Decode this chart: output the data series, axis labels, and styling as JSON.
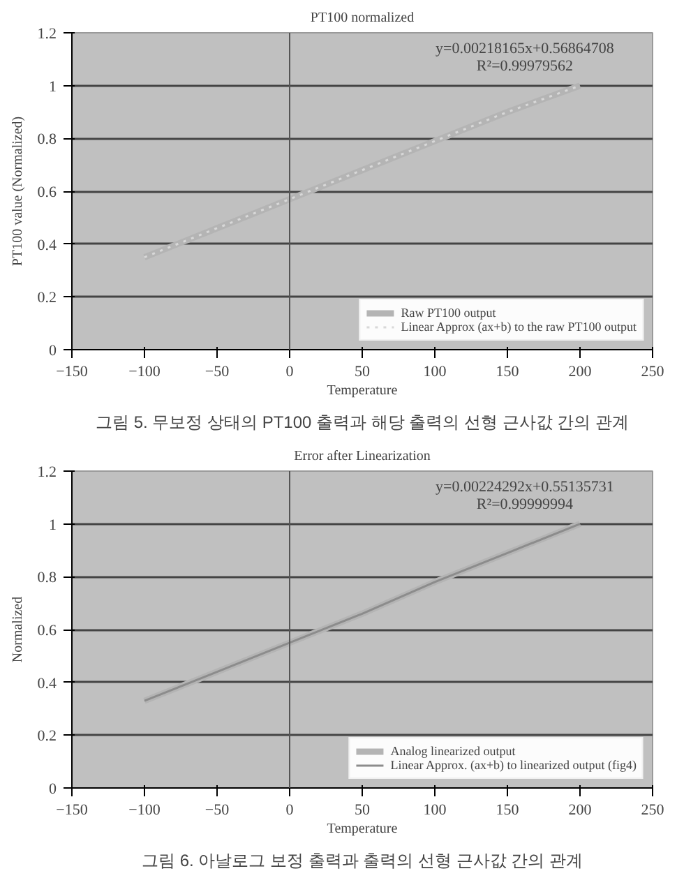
{
  "chart_data": [
    {
      "type": "line",
      "title": "PT100 normalized",
      "xlabel": "Temperature",
      "ylabel": "PT100 value (Normalized)",
      "x": [
        -100,
        -50,
        0,
        50,
        100,
        150,
        200
      ],
      "series": [
        {
          "name": "Raw PT100 output",
          "color": "#b4b4b4",
          "line_style": "solid",
          "values": [
            0.35,
            0.46,
            0.57,
            0.68,
            0.79,
            0.9,
            1.0
          ]
        },
        {
          "name": "Linear Approx (ax+b) to the raw PT100 output",
          "color": "#d8d8d8",
          "line_style": "dotted",
          "values": [
            0.35,
            0.46,
            0.57,
            0.68,
            0.79,
            0.9,
            1.0
          ]
        }
      ],
      "xlim": [
        -150,
        250
      ],
      "ylim": [
        0,
        1.2
      ],
      "xticks": [
        -150,
        -100,
        -50,
        0,
        50,
        100,
        150,
        200,
        250
      ],
      "yticks": [
        0,
        0.2,
        0.4,
        0.6,
        0.8,
        1,
        1.2
      ],
      "grid": "y",
      "legend": "bottom right",
      "annotations": [
        "y=0.00218165x+0.56864708",
        "R²=0.99979562",
        "그림 5. 무보정 상태의 PT100 출력과 해당 출력의 선형 근사값 간의 관계"
      ]
    },
    {
      "type": "line",
      "title": "Error after Linearization",
      "xlabel": "Temperature",
      "ylabel": "Normalized",
      "x": [
        -100,
        -50,
        0,
        50,
        100,
        150,
        200
      ],
      "series": [
        {
          "name": "Analog linearized output",
          "color": "#b4b4b4",
          "line_style": "solid",
          "values": [
            0.33,
            0.44,
            0.55,
            0.66,
            0.78,
            0.89,
            1.0
          ]
        },
        {
          "name": "Linear Approx. (ax+b) to linearized output (fig4)",
          "color": "#8c8c8c",
          "line_style": "solid",
          "values": [
            0.33,
            0.44,
            0.55,
            0.66,
            0.78,
            0.89,
            1.0
          ]
        }
      ],
      "xlim": [
        -150,
        250
      ],
      "ylim": [
        0,
        1.2
      ],
      "xticks": [
        -150,
        -100,
        -50,
        0,
        50,
        100,
        150,
        200,
        250
      ],
      "yticks": [
        0,
        0.2,
        0.4,
        0.6,
        0.8,
        1,
        1.2
      ],
      "grid": "y",
      "legend": "bottom right",
      "annotations": [
        "y=0.00224292x+0.55135731",
        "R²=0.99999994",
        "그림 6. 아날로그 보정 출력과 출력의 선형 근사값 간의 관계"
      ]
    }
  ]
}
